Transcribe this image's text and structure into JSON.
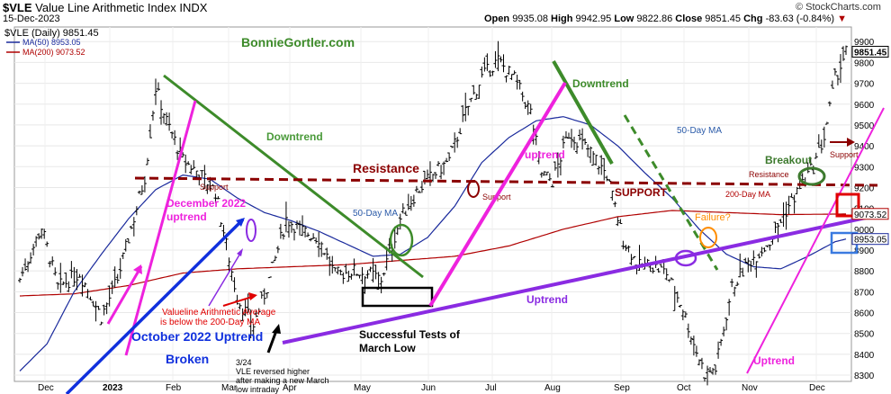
{
  "header": {
    "symbol": "$VLE",
    "name": "Value Line Arithmetic Index",
    "exchange": "INDX",
    "date": "15-Dec-2023",
    "credit": "© StockCharts.com",
    "open_label": "Open",
    "open": "9935.08",
    "high_label": "High",
    "high": "9942.95",
    "low_label": "Low",
    "low": "9822.86",
    "close_label": "Close",
    "close": "9851.45",
    "chg_label": "Chg",
    "chg": "-83.63 (-0.84%)",
    "chg_arrow": "▼"
  },
  "legend": {
    "price_label": "$VLE (Daily) 9851.45",
    "ma50_label": "MA(50) 8953.05",
    "ma200_label": "MA(200) 9073.52"
  },
  "watermark": "BonnieGortler.com",
  "annotations": {
    "downtrend_1": "Downtrend",
    "downtrend_2": "Downtrend",
    "resistance_main": "Resistance",
    "support_1": "Support",
    "support_2": "Support",
    "support_caps": "SUPPORT",
    "support_3": "Support",
    "december_uptrend_1": "December 2022",
    "december_uptrend_2": "uptrend",
    "ma50_label_1": "50-Day MA",
    "ma50_label_2": "50-Day MA",
    "ma200_label": "200-Day MA",
    "uptrend_pink": "uptrend",
    "uptrend_purple": "Uptrend",
    "uptrend_nov": "Uptrend",
    "failure": "Failure?",
    "breakout": "Breakout",
    "resistance_small": "Resistance",
    "valueline_below_1": "Valueline Arithmetic Average",
    "valueline_below_2": "is below the 200-Day MA",
    "october_uptrend": "October 2022 Uptrend",
    "broken": "Broken",
    "successful_1": "Successful Tests of",
    "successful_2": "March Low",
    "note_1": "3/24",
    "note_2": "VLE reversed higher",
    "note_3": "after making a new March",
    "note_4": "low intraday"
  },
  "chart_data": {
    "type": "ohlc",
    "title": "$VLE (Daily)",
    "y_ticks": [
      8300,
      8400,
      8500,
      8600,
      8700,
      8800,
      8900,
      9000,
      9100,
      9200,
      9300,
      9400,
      9500,
      9600,
      9700,
      9800,
      9900
    ],
    "ylim": [
      8270,
      9970
    ],
    "x_ticks": [
      "Dec",
      "2023",
      "Feb",
      "Mar",
      "Apr",
      "May",
      "Jun",
      "Jul",
      "Aug",
      "Sep",
      "Oct",
      "Nov",
      "Dec"
    ],
    "price_anchors": [
      [
        0,
        8760
      ],
      [
        8,
        9010
      ],
      [
        14,
        8720
      ],
      [
        22,
        8790
      ],
      [
        30,
        8580
      ],
      [
        36,
        8760
      ],
      [
        46,
        9250
      ],
      [
        50,
        9680
      ],
      [
        54,
        9520
      ],
      [
        60,
        9330
      ],
      [
        66,
        9270
      ],
      [
        72,
        9180
      ],
      [
        80,
        8670
      ],
      [
        86,
        8540
      ],
      [
        92,
        8760
      ],
      [
        98,
        9050
      ],
      [
        104,
        8990
      ],
      [
        110,
        8960
      ],
      [
        116,
        8780
      ],
      [
        122,
        8800
      ],
      [
        128,
        8790
      ],
      [
        133,
        8760
      ],
      [
        140,
        9050
      ],
      [
        146,
        9180
      ],
      [
        152,
        9260
      ],
      [
        158,
        9330
      ],
      [
        164,
        9560
      ],
      [
        170,
        9730
      ],
      [
        176,
        9810
      ],
      [
        182,
        9720
      ],
      [
        188,
        9560
      ],
      [
        192,
        9270
      ],
      [
        196,
        9230
      ],
      [
        202,
        9460
      ],
      [
        206,
        9420
      ],
      [
        210,
        9370
      ],
      [
        216,
        9260
      ],
      [
        222,
        8950
      ],
      [
        228,
        8820
      ],
      [
        232,
        8830
      ],
      [
        238,
        8790
      ],
      [
        244,
        8620
      ],
      [
        248,
        8450
      ],
      [
        252,
        8310
      ],
      [
        256,
        8330
      ],
      [
        262,
        8720
      ],
      [
        268,
        8840
      ],
      [
        276,
        8940
      ],
      [
        282,
        9090
      ],
      [
        288,
        9220
      ],
      [
        292,
        9300
      ],
      [
        296,
        9440
      ],
      [
        300,
        9720
      ],
      [
        304,
        9851
      ]
    ],
    "ma50": [
      [
        0,
        8320
      ],
      [
        10,
        8450
      ],
      [
        20,
        8700
      ],
      [
        30,
        8880
      ],
      [
        40,
        9050
      ],
      [
        50,
        9190
      ],
      [
        60,
        9260
      ],
      [
        70,
        9240
      ],
      [
        80,
        9150
      ],
      [
        90,
        9080
      ],
      [
        100,
        9040
      ],
      [
        110,
        8990
      ],
      [
        120,
        8930
      ],
      [
        130,
        8870
      ],
      [
        140,
        8880
      ],
      [
        150,
        8960
      ],
      [
        160,
        9110
      ],
      [
        170,
        9320
      ],
      [
        180,
        9440
      ],
      [
        190,
        9520
      ],
      [
        200,
        9540
      ],
      [
        210,
        9500
      ],
      [
        220,
        9400
      ],
      [
        230,
        9270
      ],
      [
        240,
        9150
      ],
      [
        250,
        9000
      ],
      [
        260,
        8880
      ],
      [
        270,
        8820
      ],
      [
        280,
        8810
      ],
      [
        290,
        8870
      ],
      [
        300,
        8940
      ],
      [
        304,
        8953
      ]
    ],
    "ma200": [
      [
        0,
        8680
      ],
      [
        20,
        8690
      ],
      [
        40,
        8730
      ],
      [
        60,
        8790
      ],
      [
        80,
        8810
      ],
      [
        100,
        8820
      ],
      [
        120,
        8830
      ],
      [
        140,
        8850
      ],
      [
        160,
        8870
      ],
      [
        180,
        8920
      ],
      [
        200,
        9000
      ],
      [
        220,
        9060
      ],
      [
        240,
        9090
      ],
      [
        260,
        9080
      ],
      [
        280,
        9070
      ],
      [
        304,
        9073
      ]
    ],
    "resistance_level": 9210,
    "last_price": 9851.45,
    "ma50_last": 8953.05,
    "ma200_last": 9073.52,
    "colors": {
      "price": "#000000",
      "ma50": "#1a2a9c",
      "ma200": "#b00000",
      "downtrend": "#3d8b2a",
      "uptrend_pink": "#ee22dd",
      "uptrend_purple": "#8a2be2",
      "october_uptrend": "#1030dd",
      "resistance": "#8b0000",
      "breakout": "#3d7a2e",
      "failure": "#ff8c00",
      "note": "#000000"
    }
  }
}
